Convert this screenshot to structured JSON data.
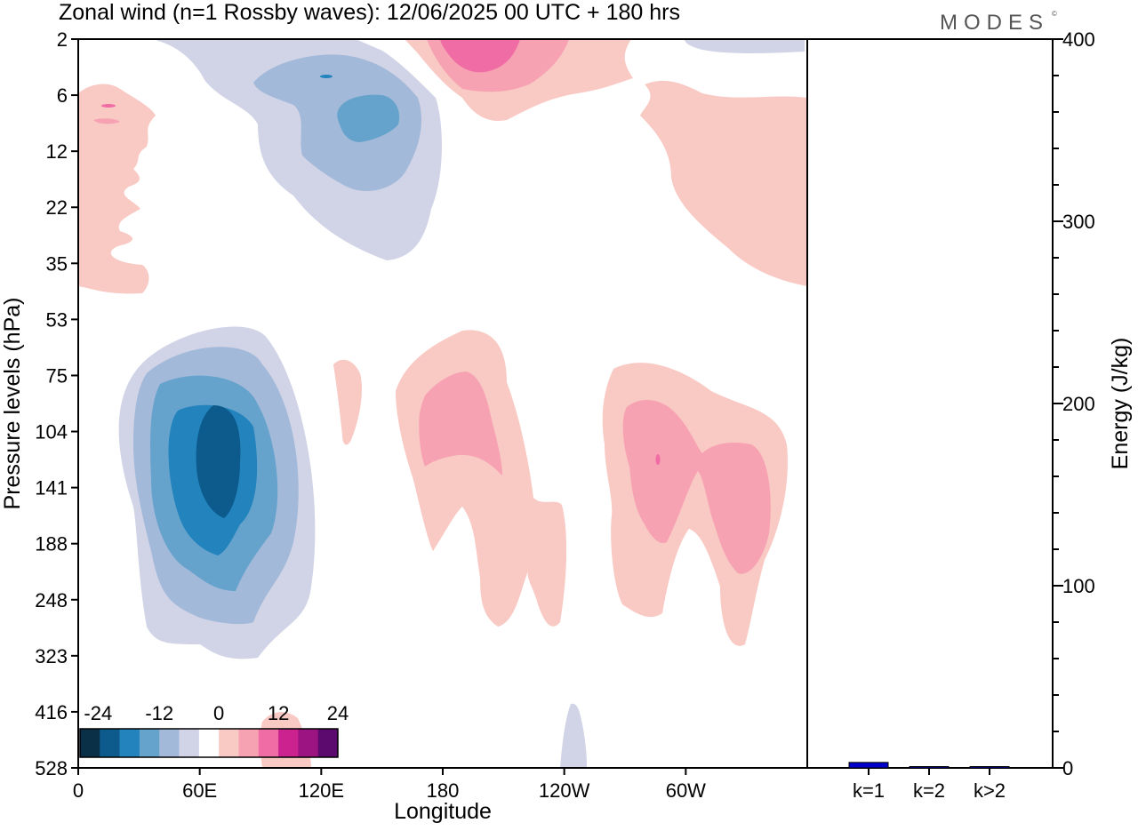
{
  "title": "Zonal wind (n=1 Rossby waves):  12/06/2025  00 UTC  + 180 hrs",
  "brand": "MODES",
  "brand_mark": "©",
  "chart_data": [
    {
      "type": "heatmap",
      "xlabel": "Longitude",
      "ylabel": "Pressure levels (hPa)",
      "x_ticks": [
        "0",
        "60E",
        "120E",
        "180",
        "120W",
        "60W"
      ],
      "y_ticks": [
        "2",
        "6",
        "12",
        "22",
        "35",
        "53",
        "75",
        "104",
        "141",
        "188",
        "248",
        "323",
        "416",
        "528"
      ],
      "colorbar": {
        "tick_labels": [
          "-24",
          "-12",
          "0",
          "12",
          "24"
        ],
        "colors": [
          "#0a3048",
          "#0c5b8c",
          "#2283bd",
          "#66a3cc",
          "#a3b9d9",
          "#d1d3e6",
          "#ffffff",
          "#f9c9c4",
          "#f7a2b3",
          "#f06ca4",
          "#cc2290",
          "#9b1482",
          "#5c0a6e"
        ]
      },
      "regions": [
        {
          "sign": "negative",
          "levels": 5,
          "lon_range": [
            "0",
            "120E"
          ],
          "levels_hPa": [
            "53",
            "323"
          ],
          "peak_color": "#0c5b8c"
        },
        {
          "sign": "negative",
          "levels": 3,
          "lon_range": [
            "60E",
            "180"
          ],
          "levels_hPa": [
            "2",
            "35"
          ],
          "peak_color": "#2283bd"
        },
        {
          "sign": "positive",
          "levels": 3,
          "lon_range": [
            "180",
            "120W"
          ],
          "levels_hPa": [
            "2",
            "6"
          ],
          "peak_color": "#f06ca4"
        },
        {
          "sign": "positive",
          "levels": 2,
          "lon_range": [
            "180",
            "120W"
          ],
          "levels_hPa": [
            "75",
            "323"
          ],
          "peak_color": "#f7a2b3"
        },
        {
          "sign": "positive",
          "levels": 3,
          "lon_range": [
            "120W",
            "60W"
          ],
          "levels_hPa": [
            "75",
            "248"
          ],
          "peak_color": "#f06ca4"
        },
        {
          "sign": "positive",
          "levels": 1,
          "lon_range": [
            "60W",
            "0"
          ],
          "levels_hPa": [
            "6",
            "35"
          ],
          "peak_color": "#f9c9c4"
        }
      ]
    },
    {
      "type": "bar",
      "ylabel": "Energy (J/kg)",
      "categories": [
        "k=1",
        "k=2",
        "k>2"
      ],
      "values": [
        3,
        0.5,
        0.5
      ],
      "ylim": [
        0,
        400
      ],
      "y_ticks": [
        "0",
        "100",
        "200",
        "300",
        "400"
      ],
      "bar_color": "#0000cc"
    }
  ]
}
